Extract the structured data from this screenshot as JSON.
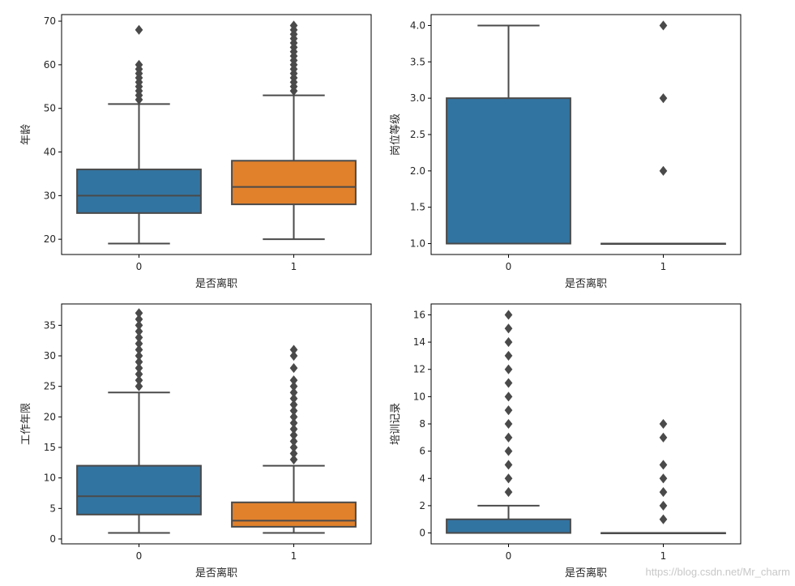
{
  "watermark": "https://blog.csdn.net/Mr_charm",
  "colors": {
    "series0": "#3274a1",
    "series1": "#e1812c",
    "line": "#4a4a4a",
    "frame": "#000000"
  },
  "chart_data": [
    {
      "type": "box",
      "xlabel": "是否离职",
      "ylabel": "年龄",
      "categories": [
        "0",
        "1"
      ],
      "ylim": [
        16.5,
        71.5
      ],
      "yticks": [
        20,
        30,
        40,
        50,
        60,
        70
      ],
      "ytick_labels": [
        "20",
        "30",
        "40",
        "50",
        "60",
        "70"
      ],
      "boxes": [
        {
          "category": "0",
          "whislo": 19,
          "q1": 26,
          "med": 30,
          "q3": 36,
          "whishi": 51,
          "outliers": [
            52,
            53,
            54,
            55,
            56,
            57,
            58,
            59,
            60,
            68
          ]
        },
        {
          "category": "1",
          "whislo": 20,
          "q1": 28,
          "med": 32,
          "q3": 38,
          "whishi": 53,
          "outliers": [
            54,
            55,
            56,
            57,
            58,
            59,
            60,
            61,
            62,
            63,
            64,
            65,
            66,
            67,
            68,
            69
          ]
        }
      ]
    },
    {
      "type": "box",
      "xlabel": "是否离职",
      "ylabel": "岗位等级",
      "categories": [
        "0",
        "1"
      ],
      "ylim": [
        0.85,
        4.15
      ],
      "yticks": [
        1.0,
        1.5,
        2.0,
        2.5,
        3.0,
        3.5,
        4.0
      ],
      "ytick_labels": [
        "1.0",
        "1.5",
        "2.0",
        "2.5",
        "3.0",
        "3.5",
        "4.0"
      ],
      "boxes": [
        {
          "category": "0",
          "whislo": 1,
          "q1": 1,
          "med": 1,
          "q3": 3,
          "whishi": 4,
          "outliers": []
        },
        {
          "category": "1",
          "whislo": 1,
          "q1": 1,
          "med": 1,
          "q3": 1,
          "whishi": 1,
          "outliers": [
            2,
            3,
            4
          ]
        }
      ]
    },
    {
      "type": "box",
      "xlabel": "是否离职",
      "ylabel": "工作年限",
      "categories": [
        "0",
        "1"
      ],
      "ylim": [
        -0.8,
        38.5
      ],
      "yticks": [
        0,
        5,
        10,
        15,
        20,
        25,
        30,
        35
      ],
      "ytick_labels": [
        "0",
        "5",
        "10",
        "15",
        "20",
        "25",
        "30",
        "35"
      ],
      "boxes": [
        {
          "category": "0",
          "whislo": 1,
          "q1": 4,
          "med": 7,
          "q3": 12,
          "whishi": 24,
          "outliers": [
            25,
            26,
            27,
            28,
            29,
            30,
            31,
            32,
            33,
            34,
            35,
            36,
            37
          ]
        },
        {
          "category": "1",
          "whislo": 1,
          "q1": 2,
          "med": 3,
          "q3": 6,
          "whishi": 12,
          "outliers": [
            13,
            14,
            15,
            16,
            17,
            18,
            19,
            20,
            21,
            22,
            23,
            24,
            25,
            26,
            28,
            30,
            31
          ]
        }
      ]
    },
    {
      "type": "box",
      "xlabel": "是否离职",
      "ylabel": "培训记录",
      "categories": [
        "0",
        "1"
      ],
      "ylim": [
        -0.8,
        16.8
      ],
      "yticks": [
        0,
        2,
        4,
        6,
        8,
        10,
        12,
        14,
        16
      ],
      "ytick_labels": [
        "0",
        "2",
        "4",
        "6",
        "8",
        "10",
        "12",
        "14",
        "16"
      ],
      "boxes": [
        {
          "category": "0",
          "whislo": 0,
          "q1": 0,
          "med": 0,
          "q3": 1,
          "whishi": 2,
          "outliers": [
            3,
            4,
            5,
            6,
            7,
            8,
            9,
            10,
            11,
            12,
            13,
            14,
            15,
            16
          ]
        },
        {
          "category": "1",
          "whislo": 0,
          "q1": 0,
          "med": 0,
          "q3": 0,
          "whishi": 0,
          "outliers": [
            1,
            2,
            3,
            4,
            5,
            7,
            8
          ]
        }
      ]
    }
  ]
}
